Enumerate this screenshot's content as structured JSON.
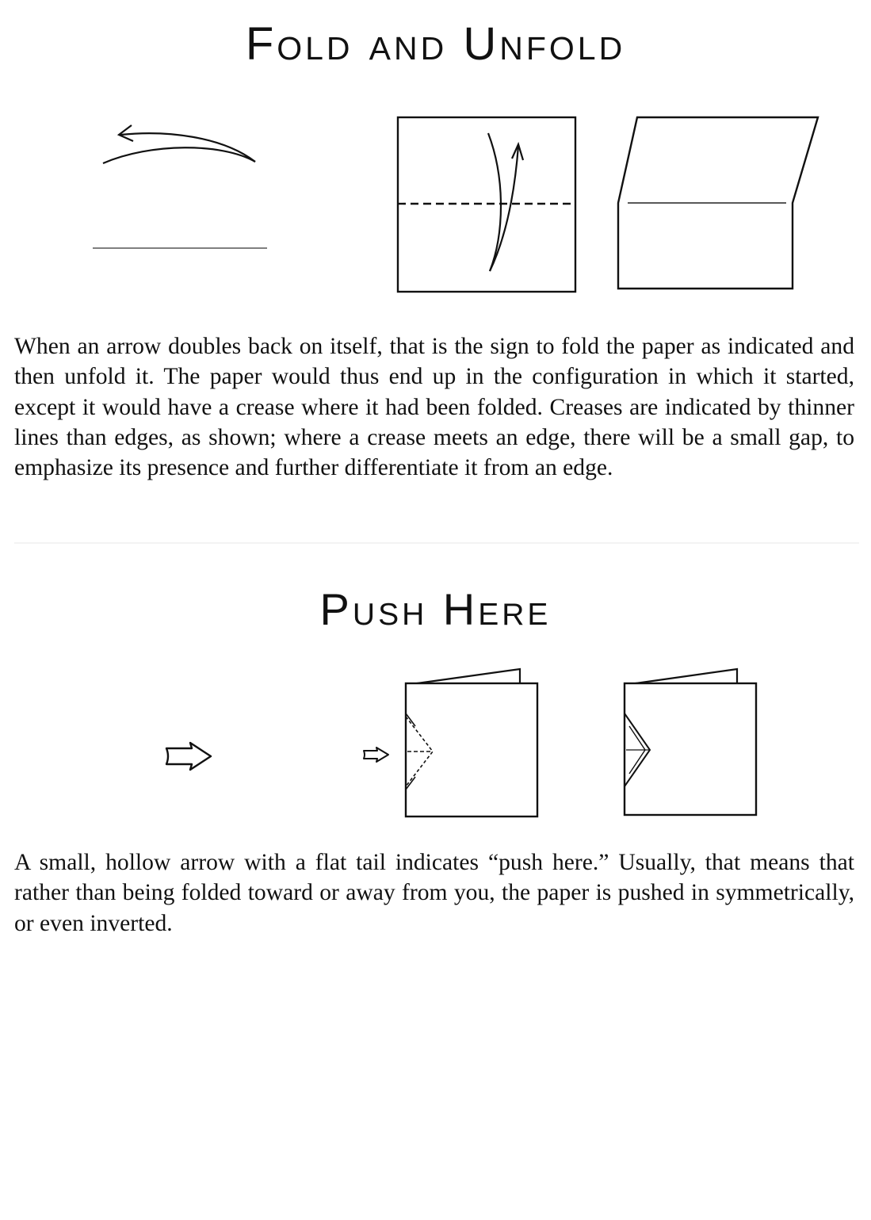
{
  "sections": {
    "fold_unfold": {
      "title": "Fold and Unfold",
      "paragraph": "When an arrow doubles back on itself, that is the sign to fold the paper as indicated and then unfold it. The paper would thus end up in the configuration in which it started, except it would have a crease where it had been folded. Creases are indicated by thinner lines than edges, as shown; where a crease meets an edge, there will be a small gap, to emphasize its presence and further differentiate it from an edge."
    },
    "push_here": {
      "title": "Push Here",
      "paragraph": "A small, hollow arrow with a flat tail indicates “push here.” Usually, that means that rather than being folded toward or away from you, the paper is pushed in symmetrically, or even inverted."
    }
  },
  "colors": {
    "ink": "#111111",
    "paper": "#ffffff"
  }
}
